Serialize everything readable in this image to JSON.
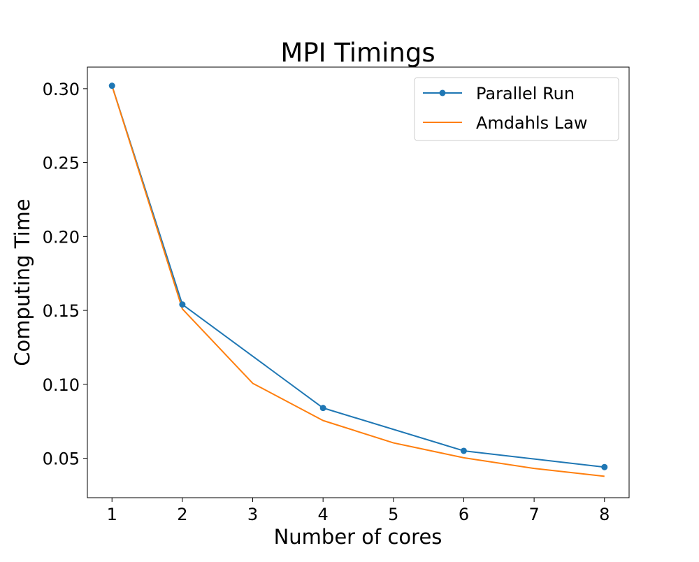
{
  "chart_data": {
    "type": "line",
    "title": "MPI Timings",
    "xlabel": "Number of cores",
    "ylabel": "Computing Time",
    "xlim": [
      0.65,
      8.35
    ],
    "ylim": [
      0.0233,
      0.3146
    ],
    "xticks": [
      1,
      2,
      3,
      4,
      5,
      6,
      7,
      8
    ],
    "xtick_labels": [
      "1",
      "2",
      "3",
      "4",
      "5",
      "6",
      "7",
      "8"
    ],
    "yticks": [
      0.05,
      0.1,
      0.15,
      0.2,
      0.25,
      0.3
    ],
    "ytick_labels": [
      "0.05",
      "0.10",
      "0.15",
      "0.20",
      "0.25",
      "0.30"
    ],
    "grid": false,
    "legend_position": "top-right",
    "series": [
      {
        "name": "Parallel Run",
        "color": "#1f77b4",
        "marker": "circle",
        "x": [
          1,
          2,
          4,
          6,
          8
        ],
        "y": [
          0.302,
          0.154,
          0.084,
          0.055,
          0.044
        ]
      },
      {
        "name": "Amdahls Law",
        "color": "#ff7f0e",
        "marker": "none",
        "x": [
          1,
          2,
          3,
          4,
          5,
          6,
          7,
          8
        ],
        "y": [
          0.302,
          0.151,
          0.1007,
          0.0755,
          0.0604,
          0.0503,
          0.0431,
          0.0378
        ]
      }
    ]
  }
}
